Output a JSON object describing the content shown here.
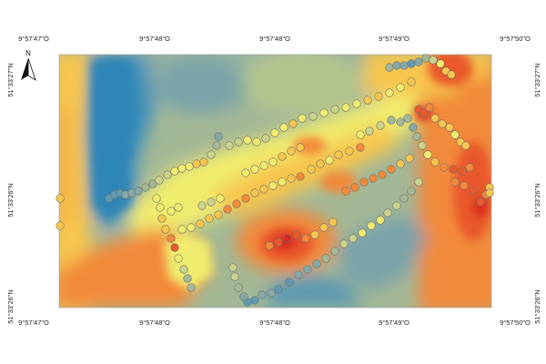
{
  "map": {
    "north_arrow": {
      "label": "N"
    },
    "top_labels": [
      "9°57'47\"O",
      "9°57'48\"O",
      "9°57'48\"O",
      "9°57'49\"O",
      "9°57'50\"O"
    ],
    "bottom_labels": [
      "9°57'47\"O",
      "9°57'48\"O",
      "9°57'48\"O",
      "9°57'49\"O",
      "9°57'50\"O"
    ],
    "left_labels": [
      "51°33'27\"N",
      "51°33'26\"N",
      "51°33'26\"N"
    ],
    "right_labels": [
      "51°33'27\"N",
      "51°33'26\"N",
      "51°33'26\"N"
    ],
    "colors": {
      "blue": "#2f86b6",
      "teal": "#5e9ab0",
      "grey_teal": "#84a9a6",
      "sage": "#a3b896",
      "light_green": "#cad38a",
      "yellow": "#f0ec6e",
      "gold": "#f6c64e",
      "orange": "#f28a3a",
      "red_orange": "#e9592b",
      "red": "#d8281f"
    }
  }
}
